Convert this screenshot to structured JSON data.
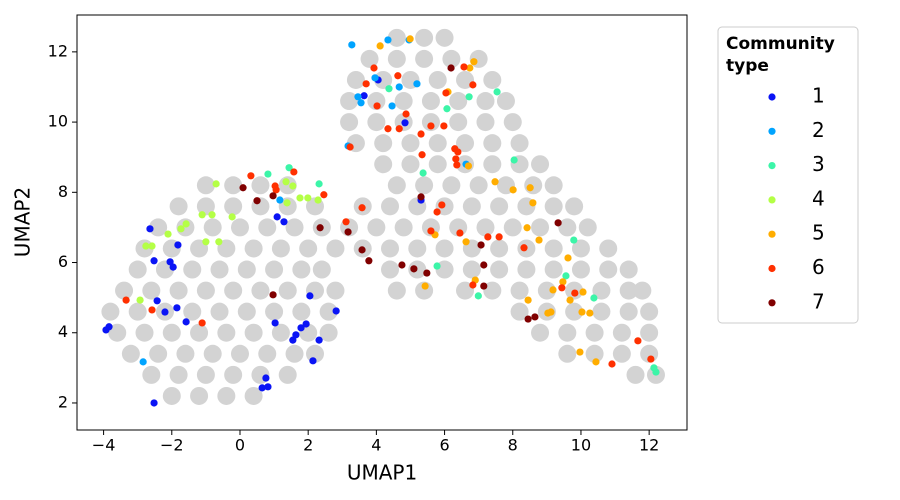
{
  "chart_data": {
    "type": "scatter",
    "x_label": "UMAP1",
    "y_label": "UMAP2",
    "legend_title": "Community type",
    "legend_position": "outside right",
    "grid": false,
    "xlim": [
      -4.78,
      13.11
    ],
    "ylim": [
      1.23,
      13.05
    ],
    "xticks": [
      {
        "value": -4,
        "label": "−4"
      },
      {
        "value": -2,
        "label": "−2"
      },
      0,
      2,
      4,
      6,
      8,
      10,
      12
    ],
    "yticks": [
      2,
      4,
      6,
      8,
      10,
      12
    ],
    "background": {
      "color": "#d3d3d3",
      "rows": [
        {
          "y": 12.4,
          "x": [
            4.6,
            5.4,
            6.0
          ]
        },
        {
          "y": 11.8,
          "x": [
            3.8,
            4.6,
            5.4,
            6.2,
            7.0
          ]
        },
        {
          "y": 11.2,
          "x": [
            3.4,
            4.2,
            5.0,
            5.8,
            6.6,
            7.4
          ]
        },
        {
          "y": 10.6,
          "x": [
            3.2,
            4.0,
            4.8,
            5.6,
            6.4,
            7.2,
            7.8
          ]
        },
        {
          "y": 10.0,
          "x": [
            3.2,
            4.0,
            4.8,
            5.6,
            6.4,
            7.2,
            8.0
          ]
        },
        {
          "y": 9.4,
          "x": [
            3.4,
            4.2,
            5.0,
            5.8,
            6.6,
            7.4,
            8.2
          ]
        },
        {
          "y": 8.8,
          "x": [
            4.2,
            5.0,
            5.8,
            6.6,
            7.4,
            8.2,
            8.8
          ]
        },
        {
          "y": 8.2,
          "x": [
            -1.0,
            -0.2,
            0.6,
            1.4,
            4.6,
            5.4,
            6.2,
            7.0,
            7.8,
            8.6,
            9.2
          ]
        },
        {
          "y": 7.6,
          "x": [
            -1.8,
            -1.0,
            -0.2,
            0.6,
            1.4,
            2.2,
            3.6,
            4.4,
            5.2,
            6.0,
            6.8,
            7.6,
            8.4,
            9.2,
            9.8
          ]
        },
        {
          "y": 7.0,
          "x": [
            -2.4,
            -1.6,
            -0.8,
            0,
            0.8,
            1.6,
            2.4,
            3.2,
            4.0,
            4.8,
            5.6,
            6.4,
            7.2,
            8.0,
            8.8,
            9.6,
            10.2
          ]
        },
        {
          "y": 6.4,
          "x": [
            -2.8,
            -2.0,
            -1.2,
            -0.4,
            0.4,
            1.2,
            2.0,
            2.8,
            3.6,
            4.4,
            5.2,
            6.0,
            6.8,
            7.6,
            8.4,
            9.2,
            10.0,
            10.8
          ]
        },
        {
          "y": 5.8,
          "x": [
            -3.0,
            -2.2,
            -1.4,
            -0.6,
            0.2,
            1.0,
            1.8,
            2.4,
            4.4,
            5.2,
            6.0,
            6.8,
            7.6,
            8.4,
            9.2,
            10.0,
            10.8,
            11.4
          ]
        },
        {
          "y": 5.2,
          "x": [
            -3.4,
            -2.6,
            -1.8,
            -1.0,
            -0.2,
            0.6,
            1.4,
            2.2,
            2.8,
            4.6,
            5.4,
            6.6,
            7.4,
            8.2,
            9.0,
            9.8,
            10.6,
            11.4,
            11.8
          ]
        },
        {
          "y": 4.6,
          "x": [
            -3.8,
            -3.0,
            -2.2,
            -1.4,
            -0.6,
            0.2,
            1.0,
            1.8,
            2.6,
            8.2,
            9.0,
            9.8,
            10.6,
            11.4,
            12.0
          ]
        },
        {
          "y": 4.0,
          "x": [
            -3.6,
            -2.8,
            -2.0,
            -1.2,
            -0.4,
            0.4,
            1.2,
            2.0,
            2.6,
            8.8,
            9.6,
            10.4,
            11.2,
            12.0
          ]
        },
        {
          "y": 3.4,
          "x": [
            -3.2,
            -2.4,
            -1.6,
            -0.8,
            0,
            0.8,
            1.6,
            2.2,
            9.6,
            10.4,
            11.2,
            12.0
          ]
        },
        {
          "y": 2.8,
          "x": [
            -2.6,
            -1.8,
            -1.0,
            -0.2,
            0.6,
            1.4,
            11.6,
            12.2
          ]
        },
        {
          "y": 2.2,
          "x": [
            -2.0,
            -1.2,
            -0.4,
            0.4
          ]
        }
      ]
    },
    "series": [
      {
        "name": "1",
        "color": "#0a14f5",
        "x": [
          -3.93,
          -3.84,
          -2.64,
          -2.52,
          -2.43,
          -2.2,
          -2.05,
          -1.96,
          -1.82,
          -1.85,
          -1.58,
          -2.52,
          1.09,
          1.29,
          1.03,
          1.55,
          1.64,
          1.79,
          1.94,
          2.05,
          2.32,
          2.14,
          2.82,
          0.76,
          0.65,
          0.82,
          4.05,
          4.84,
          5.31,
          3.64
        ],
        "y": [
          4.08,
          4.17,
          6.96,
          6.05,
          4.91,
          4.59,
          6.02,
          5.87,
          6.5,
          4.71,
          4.31,
          2.0,
          7.3,
          7.16,
          4.28,
          3.79,
          3.94,
          4.14,
          4.25,
          5.05,
          3.79,
          3.2,
          4.62,
          2.71,
          2.43,
          2.46,
          11.2,
          9.98,
          7.78,
          10.75
        ]
      },
      {
        "name": "2",
        "color": "#00a4ff",
        "x": [
          3.28,
          4.34,
          4.96,
          3.96,
          4.46,
          4.67,
          5.19,
          3.55,
          3.46,
          3.17,
          6.63,
          -2.84,
          1.17
        ],
        "y": [
          12.2,
          12.34,
          12.34,
          11.26,
          10.46,
          11.0,
          11.09,
          10.55,
          10.72,
          9.32,
          8.8,
          3.17,
          7.78
        ]
      },
      {
        "name": "3",
        "color": "#3cf5a8",
        "x": [
          0.82,
          1.44,
          2.32,
          4.37,
          5.37,
          6.07,
          6.72,
          7.54,
          8.04,
          5.78,
          6.99,
          9.79,
          10.38,
          9.56,
          12.14,
          12.2
        ],
        "y": [
          8.52,
          8.7,
          8.24,
          10.95,
          8.55,
          10.38,
          10.72,
          10.86,
          8.92,
          5.9,
          5.05,
          6.64,
          4.99,
          5.62,
          3.0,
          2.88
        ]
      },
      {
        "name": "4",
        "color": "#b4ff46",
        "x": [
          -0.7,
          -1.11,
          -0.82,
          -0.23,
          -1.58,
          -1.73,
          -2.11,
          -2.76,
          -2.58,
          -1.0,
          -0.62,
          -2.93,
          1.35,
          1.55,
          1.76,
          1.99,
          2.29,
          1.38
        ],
        "y": [
          8.24,
          7.36,
          7.36,
          7.3,
          7.1,
          6.96,
          6.81,
          6.47,
          6.47,
          6.59,
          6.59,
          4.93,
          8.3,
          8.18,
          7.84,
          7.84,
          7.78,
          7.7
        ]
      },
      {
        "name": "5",
        "color": "#ffad00",
        "x": [
          4.11,
          4.99,
          6.86,
          6.74,
          6.1,
          6.7,
          7.48,
          8.01,
          8.51,
          8.59,
          8.42,
          8.77,
          5.72,
          6.63,
          5.43,
          6.9,
          8.45,
          9.18,
          9.47,
          9.62,
          9.68,
          10.06,
          9.03,
          10.03,
          10.26,
          9.97,
          10.44,
          9.12
        ],
        "y": [
          12.17,
          12.37,
          11.72,
          11.54,
          10.86,
          8.75,
          8.3,
          8.07,
          8.13,
          7.7,
          6.99,
          6.64,
          6.79,
          6.59,
          5.33,
          5.5,
          4.93,
          5.22,
          5.45,
          6.13,
          4.93,
          5.16,
          4.56,
          4.59,
          4.56,
          3.45,
          3.17,
          4.59
        ]
      },
      {
        "name": "6",
        "color": "#ff3000",
        "x": [
          -3.34,
          -2.58,
          -1.11,
          0.32,
          1.03,
          1.06,
          1.58,
          2.46,
          3.11,
          3.58,
          3.23,
          3.7,
          3.93,
          4.63,
          4.02,
          4.34,
          4.67,
          4.87,
          5.31,
          5.6,
          5.98,
          5.34,
          6.04,
          6.57,
          6.3,
          6.39,
          6.33,
          6.36,
          5.92,
          5.78,
          5.6,
          6.45,
          6.83,
          7.27,
          7.6,
          8.33,
          6.83,
          9.44,
          9.82,
          10.91,
          11.67,
          12.05
        ],
        "y": [
          4.93,
          4.65,
          4.28,
          8.47,
          8.18,
          8.07,
          8.58,
          7.93,
          7.16,
          7.56,
          9.29,
          11.09,
          11.54,
          11.32,
          10.46,
          9.81,
          9.81,
          10.23,
          9.66,
          9.89,
          9.89,
          9.07,
          10.83,
          11.57,
          9.24,
          9.15,
          8.95,
          8.78,
          7.64,
          7.44,
          6.9,
          6.84,
          11.06,
          6.73,
          6.73,
          6.42,
          5.36,
          5.28,
          5.13,
          3.11,
          3.77,
          3.25
        ]
      },
      {
        "name": "7",
        "color": "#800000",
        "x": [
          0.09,
          0.5,
          0.97,
          2.35,
          0.97,
          3.17,
          3.58,
          3.78,
          4.75,
          5.1,
          5.48,
          5.31,
          6.19,
          7.07,
          7.15,
          7.15,
          8.45,
          8.65,
          9.33
        ],
        "y": [
          8.13,
          7.76,
          7.9,
          6.99,
          5.08,
          6.87,
          6.36,
          6.05,
          5.93,
          5.82,
          5.7,
          7.87,
          11.54,
          6.5,
          5.93,
          5.33,
          4.39,
          4.45,
          7.13
        ]
      }
    ]
  }
}
